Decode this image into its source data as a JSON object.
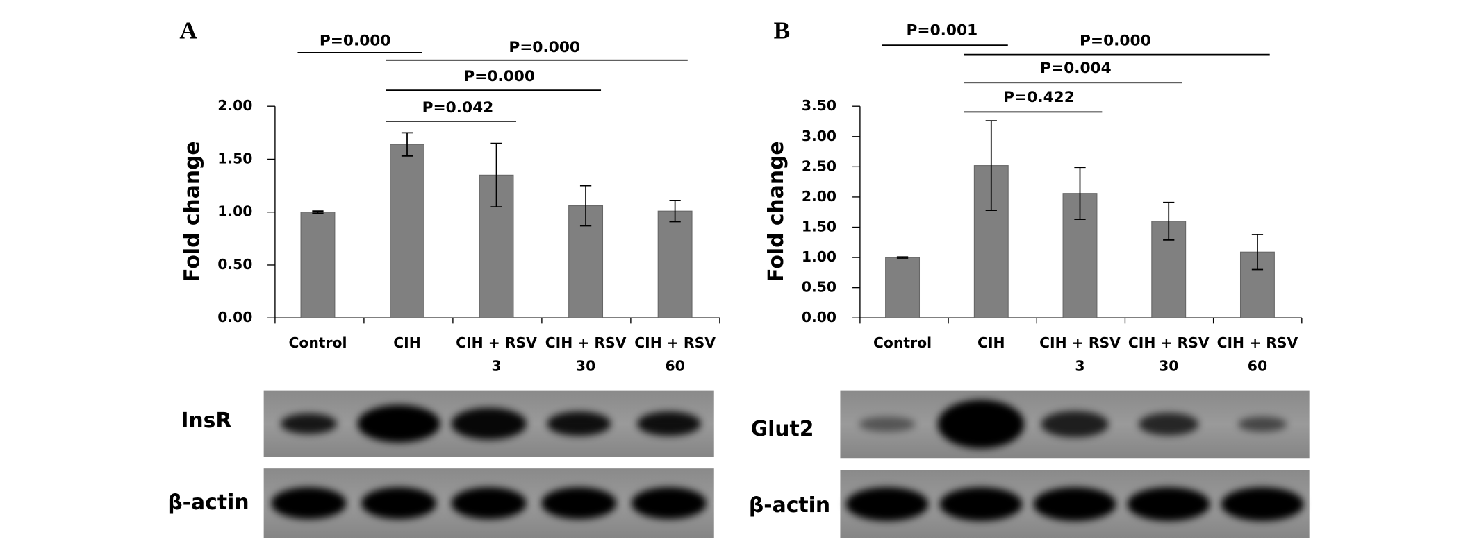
{
  "chart_data": [
    {
      "type": "bar",
      "panel": "A",
      "ylabel": "Fold change",
      "categories": [
        [
          "Control"
        ],
        [
          "CIH"
        ],
        [
          "CIH + RSV",
          "3"
        ],
        [
          "CIH + RSV",
          "30"
        ],
        [
          "CIH + RSV",
          "60"
        ]
      ],
      "values": [
        1.0,
        1.64,
        1.35,
        1.06,
        1.01
      ],
      "errors": [
        0.01,
        0.11,
        0.3,
        0.19,
        0.1
      ],
      "color": "#808080",
      "ylim": [
        0,
        2
      ],
      "yticks": [
        {
          "value": 0,
          "label": "0.00"
        },
        {
          "value": 0.5,
          "label": "0.50"
        },
        {
          "value": 1,
          "label": "1.00"
        },
        {
          "value": 1.5,
          "label": "1.50"
        },
        {
          "value": 2,
          "label": "2.00"
        }
      ],
      "annotations": [
        "P=0.000",
        "P=0.000",
        "P=0.000",
        "P=0.042"
      ],
      "blot_labels": [
        "InsR",
        "β-actin"
      ]
    },
    {
      "type": "bar",
      "panel": "B",
      "ylabel": "Fold change",
      "categories": [
        [
          "Control"
        ],
        [
          "CIH"
        ],
        [
          "CIH + RSV",
          "3"
        ],
        [
          "CIH + RSV",
          "30"
        ],
        [
          "CIH + RSV",
          "60"
        ]
      ],
      "values": [
        1.0,
        2.52,
        2.06,
        1.6,
        1.09
      ],
      "errors": [
        0.01,
        0.74,
        0.43,
        0.31,
        0.29
      ],
      "color": "#808080",
      "ylim": [
        0,
        3.5
      ],
      "yticks": [
        {
          "value": 0,
          "label": "0.00"
        },
        {
          "value": 0.5,
          "label": "0.50"
        },
        {
          "value": 1,
          "label": "1.00"
        },
        {
          "value": 1.5,
          "label": "1.50"
        },
        {
          "value": 2,
          "label": "2.00"
        },
        {
          "value": 2.5,
          "label": "2.50"
        },
        {
          "value": 3,
          "label": "3.00"
        },
        {
          "value": 3.5,
          "label": "3.50"
        }
      ],
      "annotations": [
        "P=0.001",
        "P=0.000",
        "P=0.004",
        "P=0.422"
      ],
      "blot_labels": [
        "Glut2",
        "β-actin"
      ]
    }
  ]
}
